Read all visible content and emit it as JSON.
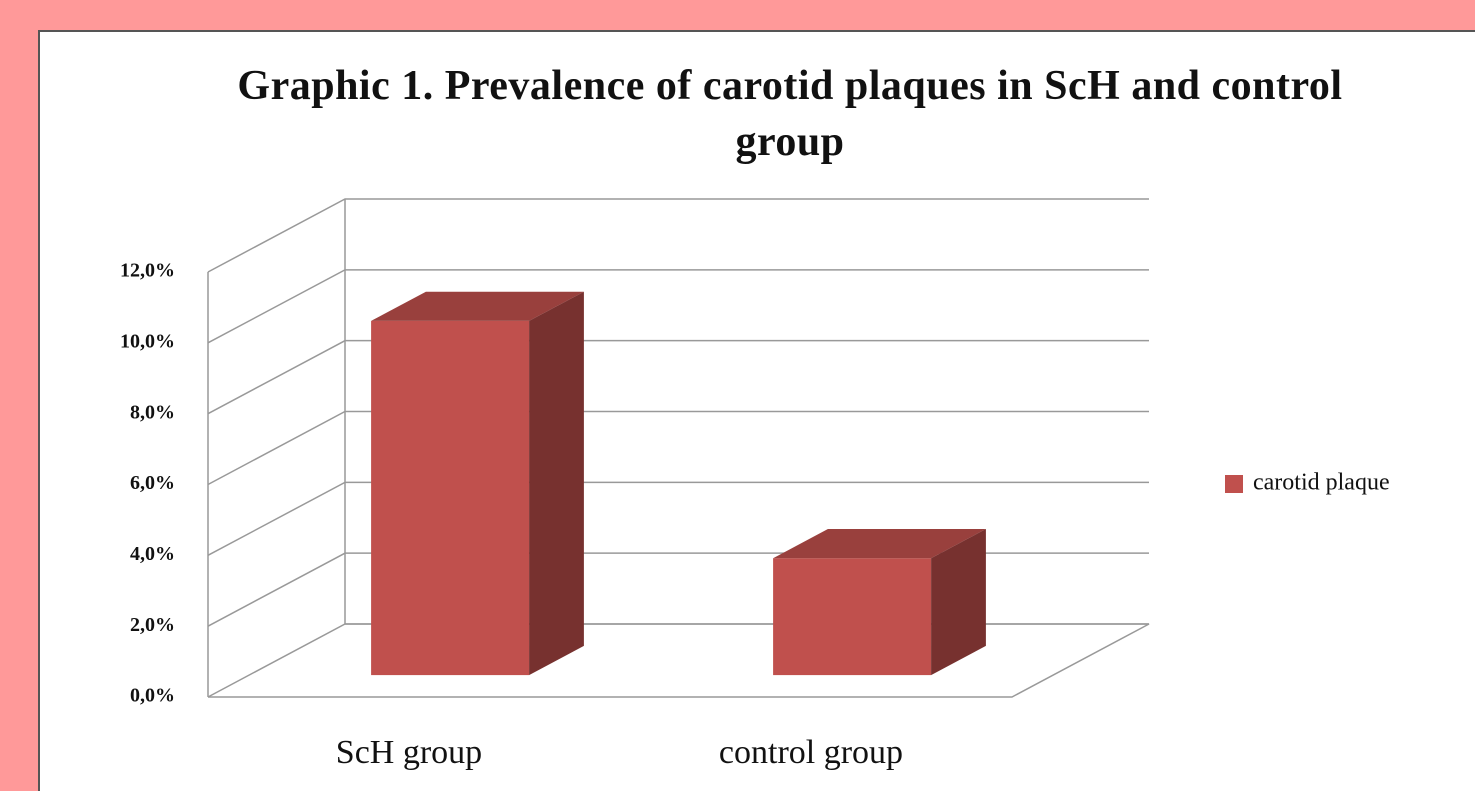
{
  "chart_data": {
    "type": "bar3d",
    "title": "Graphic 1. Prevalence of carotid plaques in ScH and control group",
    "categories": [
      "ScH group",
      "control group"
    ],
    "series": [
      {
        "name": "carotid plaque",
        "color": "#c0504d",
        "values": [
          10.0,
          3.3
        ]
      }
    ],
    "ylim": [
      0,
      12
    ],
    "yticks": [
      {
        "value": 0,
        "label": "0,0%"
      },
      {
        "value": 2,
        "label": "2,0%"
      },
      {
        "value": 4,
        "label": "4,0%"
      },
      {
        "value": 6,
        "label": "6,0%"
      },
      {
        "value": 8,
        "label": "8,0%"
      },
      {
        "value": 10,
        "label": "10,0%"
      },
      {
        "value": 12,
        "label": "12,0%"
      }
    ],
    "grid": true,
    "legend": "right"
  }
}
